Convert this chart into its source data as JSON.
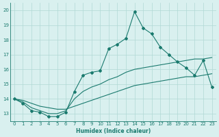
{
  "xlabel": "Humidex (Indice chaleur)",
  "x_values": [
    0,
    1,
    2,
    3,
    4,
    5,
    6,
    7,
    8,
    9,
    10,
    11,
    12,
    13,
    14,
    15,
    16,
    17,
    18,
    19,
    20,
    21,
    22,
    23
  ],
  "line1_y": [
    14.0,
    13.7,
    13.2,
    13.1,
    12.8,
    12.8,
    13.1,
    14.5,
    15.6,
    15.8,
    15.9,
    17.4,
    17.7,
    18.1,
    19.9,
    18.8,
    18.4,
    17.5,
    17.0,
    16.5,
    16.1,
    15.6,
    16.6,
    14.8
  ],
  "line2_y": [
    14.0,
    13.8,
    13.4,
    13.2,
    13.0,
    13.0,
    13.2,
    14.0,
    14.5,
    14.8,
    15.0,
    15.3,
    15.5,
    15.8,
    16.0,
    16.1,
    16.2,
    16.3,
    16.4,
    16.5,
    16.6,
    16.7,
    16.7,
    16.8
  ],
  "line3_y": [
    14.0,
    13.9,
    13.7,
    13.5,
    13.4,
    13.3,
    13.3,
    13.5,
    13.7,
    13.9,
    14.1,
    14.3,
    14.5,
    14.7,
    14.9,
    15.0,
    15.1,
    15.2,
    15.3,
    15.4,
    15.5,
    15.5,
    15.6,
    15.7
  ],
  "line_color": "#1a7a6e",
  "bg_color": "#d9f0ef",
  "grid_color": "#b0d8d5",
  "ylim": [
    12.5,
    20.5
  ],
  "yticks": [
    13,
    14,
    15,
    16,
    17,
    18,
    19,
    20
  ],
  "xticks": [
    0,
    1,
    2,
    3,
    4,
    5,
    6,
    7,
    8,
    9,
    10,
    11,
    12,
    13,
    14,
    15,
    16,
    17,
    18,
    19,
    20,
    21,
    22,
    23
  ],
  "marker": "D",
  "marker_size": 2.0,
  "line_width": 0.8,
  "tick_fontsize": 5.0,
  "xlabel_fontsize": 5.5
}
